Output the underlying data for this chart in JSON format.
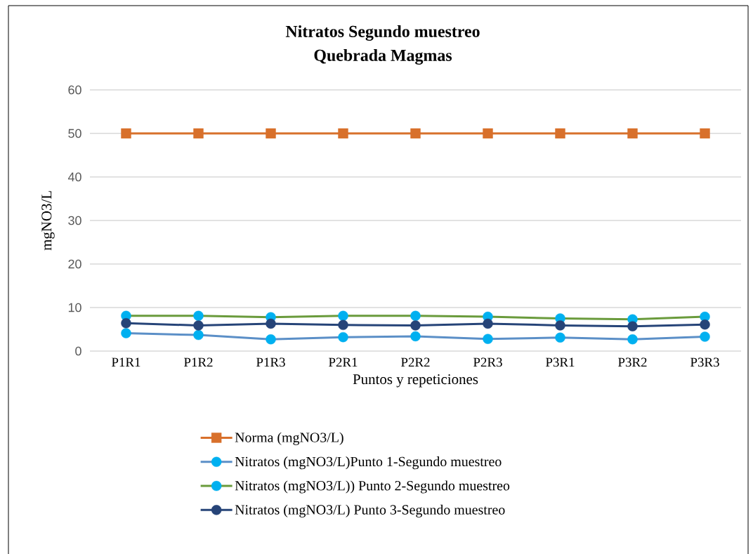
{
  "chart_data": {
    "type": "line",
    "title": "Nitratos Segundo muestreo",
    "subtitle": "Quebrada Magmas",
    "xlabel": "Puntos y repeticiones",
    "ylabel": "mgNO3/L",
    "categories": [
      "P1R1",
      "P1R2",
      "P1R3",
      "P2R1",
      "P2R2",
      "P2R3",
      "P3R1",
      "P3R2",
      "P3R3"
    ],
    "series": [
      {
        "name": "Norma (mgNO3/L)",
        "color": "#d8702b",
        "marker": "square",
        "values": [
          50,
          50,
          50,
          50,
          50,
          50,
          50,
          50,
          50
        ]
      },
      {
        "name": "Nitratos (mgNO3/L)Punto 1-Segundo muestreo",
        "color": "#5b8fc7",
        "marker": "circle",
        "colors": [
          "#00b0f0",
          "#00b0f0",
          "#00b0f0",
          "#00b0f0",
          "#00b0f0",
          "#00b0f0",
          "#00b0f0",
          "#00b0f0",
          "#00b0f0"
        ],
        "values": [
          4.1,
          3.7,
          2.7,
          3.2,
          3.4,
          2.8,
          3.1,
          2.7,
          3.3
        ]
      },
      {
        "name": "Nitratos (mgNO3/L)) Punto 2-Segundo muestreo",
        "color": "#6a9b3c",
        "marker": "circle",
        "colors": [
          "#00b0f0",
          "#00b0f0",
          "#00b0f0",
          "#00b0f0",
          "#00b0f0",
          "#00b0f0",
          "#00b0f0",
          "#00b0f0",
          "#00b0f0"
        ],
        "values": [
          8.1,
          8.1,
          7.8,
          8.1,
          8.1,
          7.9,
          7.5,
          7.3,
          7.9
        ]
      },
      {
        "name": "Nitratos (mgNO3/L) Punto 3-Segundo muestreo",
        "color": "#264478",
        "marker": "circle",
        "values": [
          6.4,
          5.9,
          6.3,
          6.0,
          5.9,
          6.3,
          5.9,
          5.7,
          6.1
        ]
      }
    ],
    "ylim": [
      0,
      60
    ],
    "yticks": [
      0,
      10,
      20,
      30,
      40,
      50,
      60
    ],
    "grid": "y",
    "legend": "bottom"
  }
}
